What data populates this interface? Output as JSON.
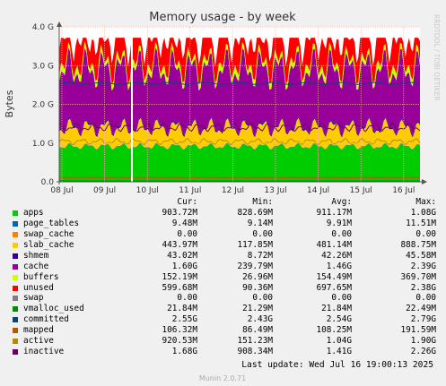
{
  "chart_data": {
    "type": "area",
    "title": "Memory usage - by week",
    "ylabel": "Bytes",
    "side_text": "RRDTOOL / TOBI OETIKER",
    "y_ticks": [
      "0.0",
      "1.0 G",
      "2.0 G",
      "3.0 G",
      "4.0 G"
    ],
    "y_tick_values": [
      0,
      1000000000,
      2000000000,
      3000000000,
      4000000000
    ],
    "ylim": [
      0,
      4000000000
    ],
    "x_ticks": [
      "08 Jul",
      "09 Jul",
      "10 Jul",
      "11 Jul",
      "12 Jul",
      "13 Jul",
      "14 Jul",
      "15 Jul",
      "16 Jul"
    ],
    "grid": true,
    "stacked_series": [
      {
        "name": "apps",
        "color": "#00cc00",
        "typical": 911170000
      },
      {
        "name": "page_tables",
        "color": "#0066b3",
        "typical": 9910000
      },
      {
        "name": "swap_cache",
        "color": "#ff8000",
        "typical": 0
      },
      {
        "name": "slab_cache",
        "color": "#ffcc00",
        "typical": 481140000
      },
      {
        "name": "shmem",
        "color": "#330099",
        "typical": 42260000
      },
      {
        "name": "cache",
        "color": "#990099",
        "typical": 1460000000
      },
      {
        "name": "buffers",
        "color": "#ccff00",
        "typical": 154490000
      },
      {
        "name": "unused",
        "color": "#ff0000",
        "typical": 697650000
      },
      {
        "name": "swap",
        "color": "#808080",
        "typical": 0
      }
    ],
    "line_series": [
      {
        "name": "vmalloc_used",
        "color": "#008f00",
        "typical": 21840000
      },
      {
        "name": "committed",
        "color": "#00487d",
        "typical": 2540000000
      },
      {
        "name": "mapped",
        "color": "#b35a00",
        "typical": 108250000
      },
      {
        "name": "active",
        "color": "#b38f00",
        "typical": 1040000000
      },
      {
        "name": "inactive",
        "color": "#6b006b",
        "typical": 1410000000
      }
    ],
    "legend_header": [
      "Cur:",
      "Min:",
      "Avg:",
      "Max:"
    ],
    "legend": [
      {
        "name": "apps",
        "color": "#00cc00",
        "cur": "903.72M",
        "min": "828.69M",
        "avg": "911.17M",
        "max": "1.08G"
      },
      {
        "name": "page_tables",
        "color": "#0066b3",
        "cur": "9.48M",
        "min": "9.14M",
        "avg": "9.91M",
        "max": "11.51M"
      },
      {
        "name": "swap_cache",
        "color": "#ff8000",
        "cur": "0.00",
        "min": "0.00",
        "avg": "0.00",
        "max": "0.00"
      },
      {
        "name": "slab_cache",
        "color": "#ffcc00",
        "cur": "443.97M",
        "min": "117.85M",
        "avg": "481.14M",
        "max": "888.75M"
      },
      {
        "name": "shmem",
        "color": "#330099",
        "cur": "43.02M",
        "min": "8.72M",
        "avg": "42.26M",
        "max": "45.58M"
      },
      {
        "name": "cache",
        "color": "#990099",
        "cur": "1.60G",
        "min": "239.79M",
        "avg": "1.46G",
        "max": "2.39G"
      },
      {
        "name": "buffers",
        "color": "#ccff00",
        "cur": "152.19M",
        "min": "26.96M",
        "avg": "154.49M",
        "max": "369.70M"
      },
      {
        "name": "unused",
        "color": "#ff0000",
        "cur": "599.68M",
        "min": "90.36M",
        "avg": "697.65M",
        "max": "2.38G"
      },
      {
        "name": "swap",
        "color": "#808080",
        "cur": "0.00",
        "min": "0.00",
        "avg": "0.00",
        "max": "0.00"
      },
      {
        "name": "vmalloc_used",
        "color": "#008f00",
        "cur": "21.84M",
        "min": "21.29M",
        "avg": "21.84M",
        "max": "22.49M"
      },
      {
        "name": "committed",
        "color": "#00487d",
        "cur": "2.55G",
        "min": "2.43G",
        "avg": "2.54G",
        "max": "2.79G"
      },
      {
        "name": "mapped",
        "color": "#b35a00",
        "cur": "106.32M",
        "min": "86.49M",
        "avg": "108.25M",
        "max": "191.59M"
      },
      {
        "name": "active",
        "color": "#b38f00",
        "cur": "920.53M",
        "min": "151.23M",
        "avg": "1.04G",
        "max": "1.90G"
      },
      {
        "name": "inactive",
        "color": "#6b006b",
        "cur": "1.68G",
        "min": "908.34M",
        "avg": "1.41G",
        "max": "2.26G"
      }
    ],
    "last_update": "Last update: Wed Jul 16 19:00:13 2025",
    "footer": "Munin 2.0.71"
  }
}
